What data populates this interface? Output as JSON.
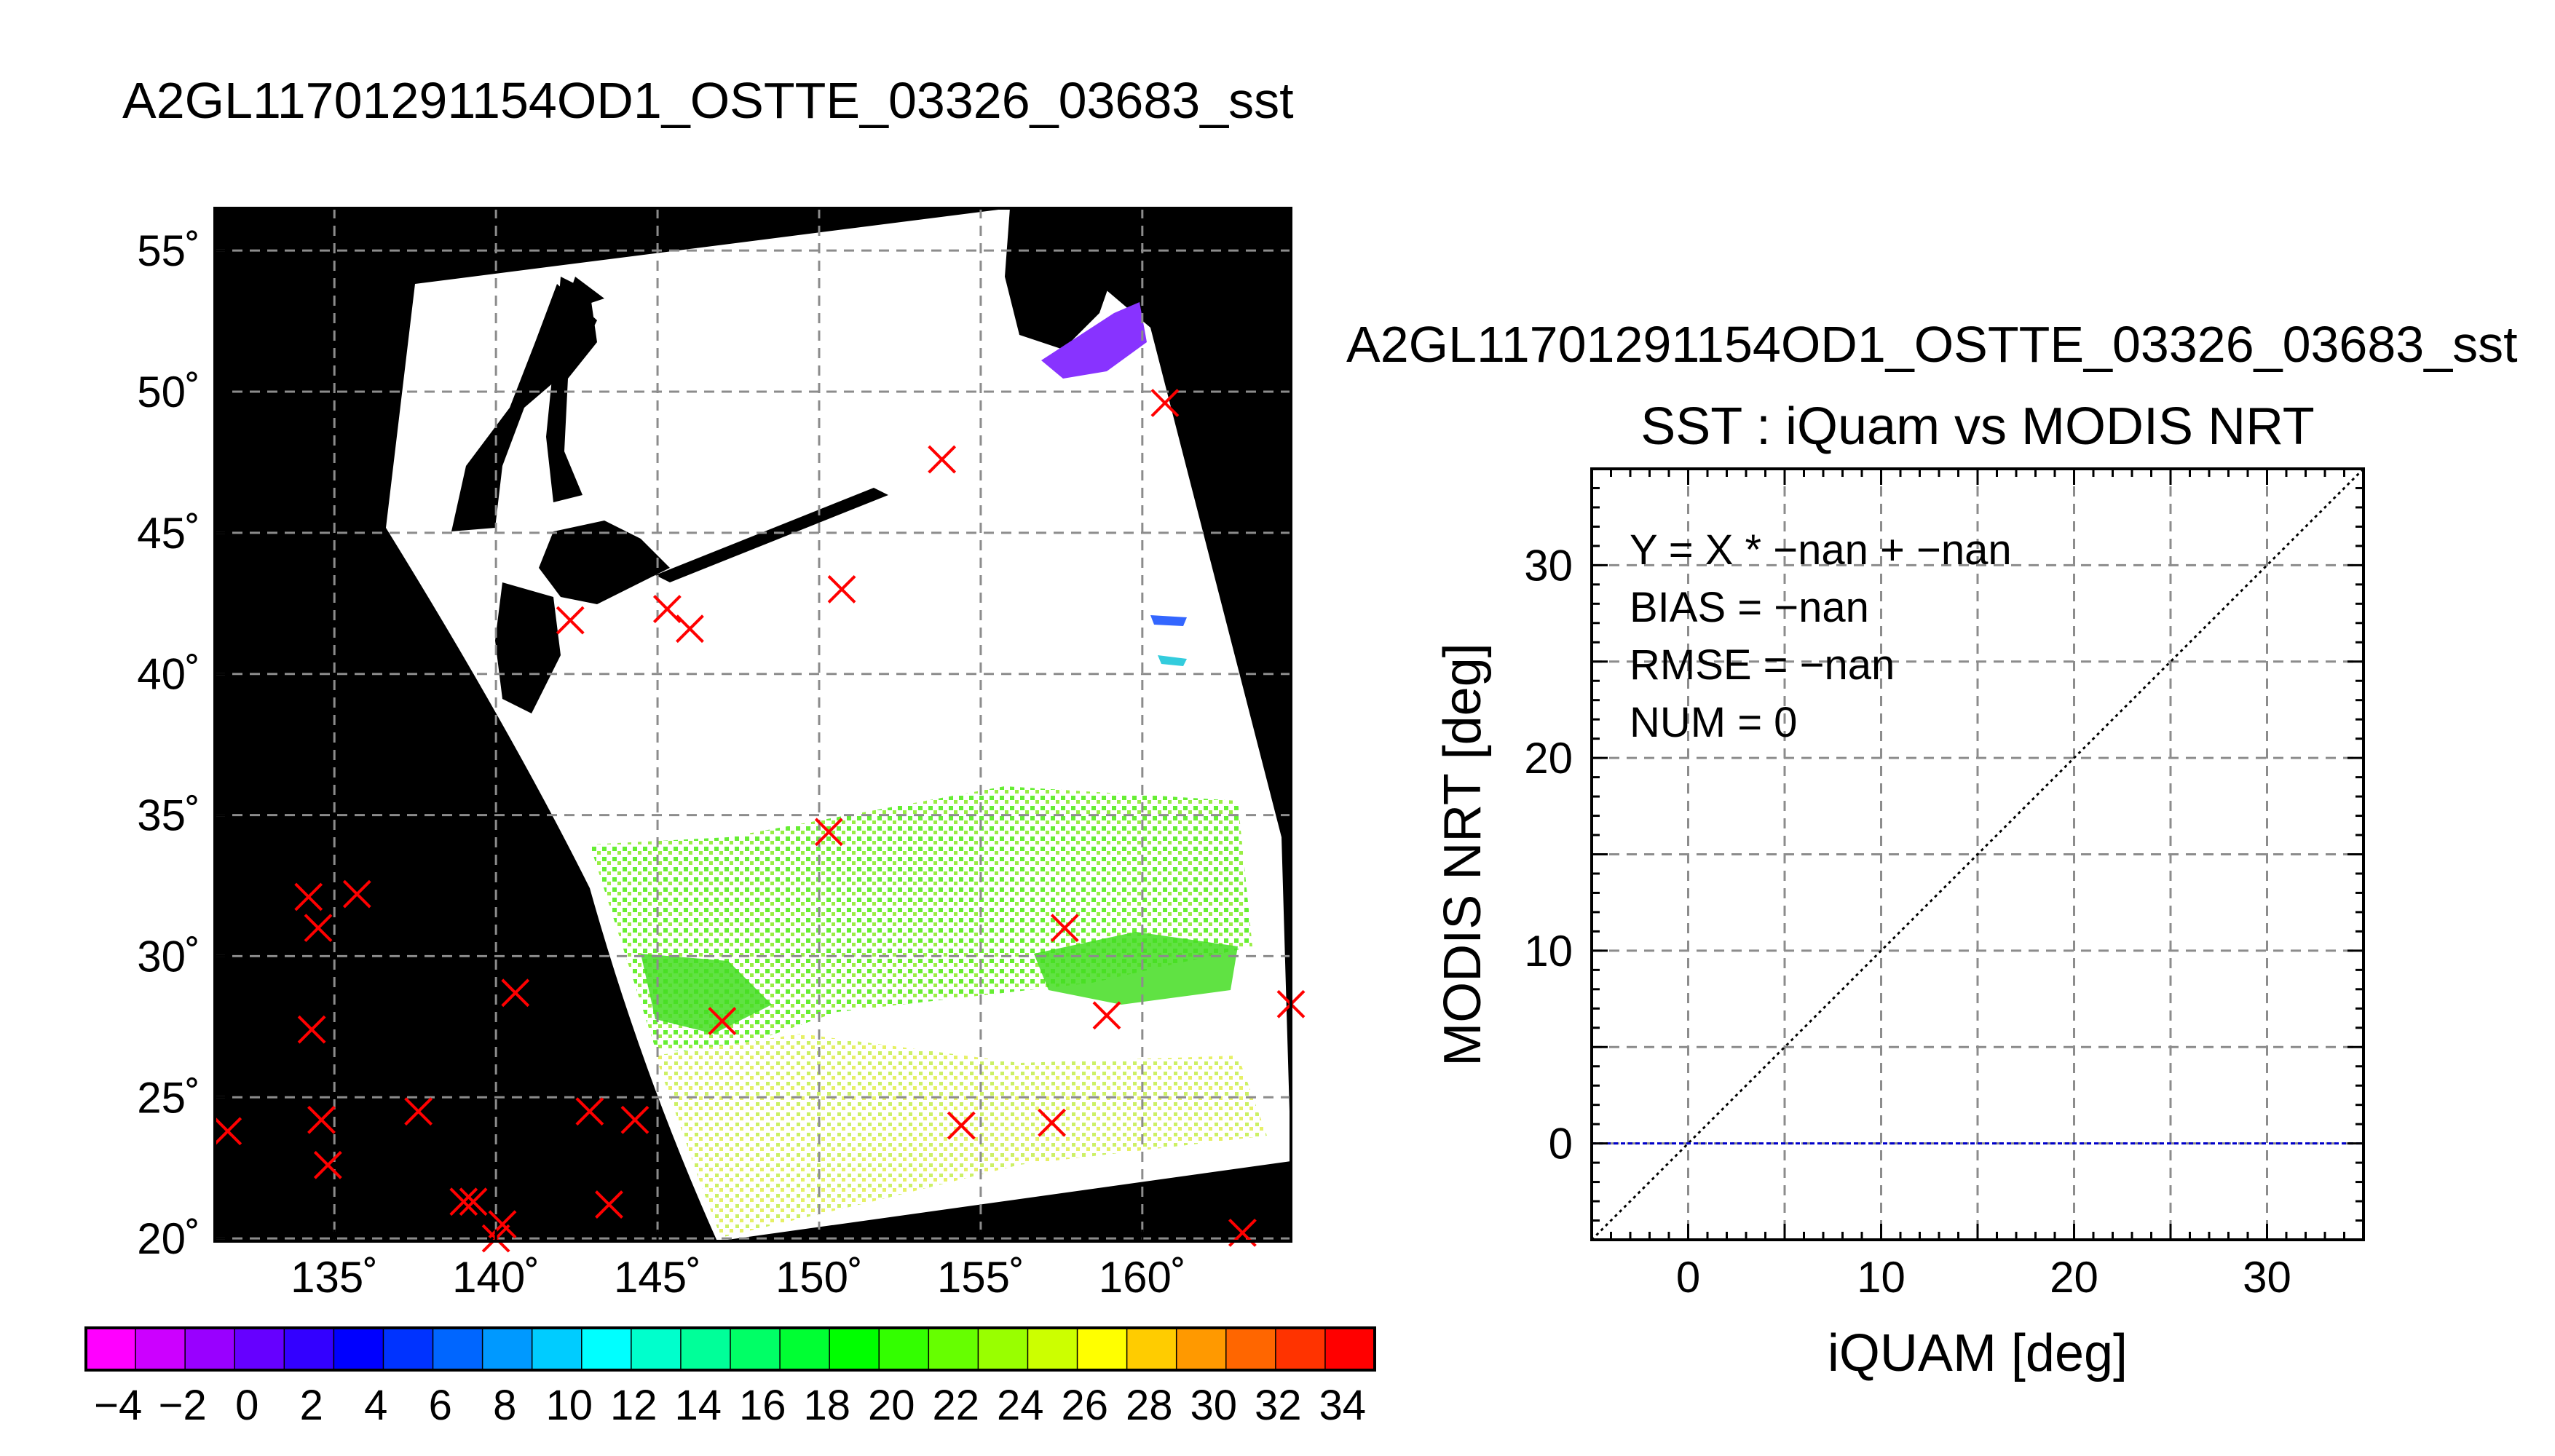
{
  "figure": {
    "main_title": "A2GL11701291154OD1_OSTTE_03326_03683_sst",
    "right_title": "A2GL11701291154OD1_OSTTE_03326_03683_sst",
    "colors": {
      "land": "#000000",
      "no_data": "#ffffff",
      "marker": "#ff0000",
      "grid": "#8c8c8c",
      "zero_line": "#0000cc"
    }
  },
  "chart_data": [
    {
      "type": "map",
      "title": "A2GL11701291154OD1_OSTTE_03326_03683_sst",
      "x_ticks": [
        "135˚",
        "140˚",
        "145˚",
        "150˚",
        "155˚",
        "160˚"
      ],
      "y_ticks": [
        "55˚",
        "50˚",
        "45˚",
        "40˚",
        "35˚",
        "30˚",
        "25˚",
        "20˚"
      ],
      "lon_range": [
        131.3,
        164.6
      ],
      "lat_range": [
        19.9,
        56.5
      ],
      "grid": true,
      "colorbar": {
        "tick_labels": [
          "−4",
          "−2",
          "0",
          "2",
          "4",
          "6",
          "8",
          "10",
          "12",
          "14",
          "16",
          "18",
          "20",
          "22",
          "24",
          "26",
          "28",
          "30",
          "32",
          "34"
        ],
        "range": [
          -5,
          35
        ],
        "colors": [
          "#ff00ff",
          "#cc00ff",
          "#9900ff",
          "#6600ff",
          "#3300ff",
          "#0000ff",
          "#0033ff",
          "#0066ff",
          "#0099ff",
          "#00ccff",
          "#00ffff",
          "#00ffcc",
          "#00ff99",
          "#00ff66",
          "#00ff33",
          "#00ff00",
          "#33ff00",
          "#66ff00",
          "#99ff00",
          "#ccff00",
          "#ffff00",
          "#ffcc00",
          "#ff9900",
          "#ff6600",
          "#ff3300",
          "#ff0000"
        ]
      },
      "markers": [
        {
          "lon": 131.7,
          "lat": 23.8
        },
        {
          "lon": 134.2,
          "lat": 32.1
        },
        {
          "lon": 135.7,
          "lat": 32.2
        },
        {
          "lon": 134.5,
          "lat": 31.0
        },
        {
          "lon": 134.3,
          "lat": 27.4
        },
        {
          "lon": 134.6,
          "lat": 24.2
        },
        {
          "lon": 134.8,
          "lat": 22.6
        },
        {
          "lon": 137.6,
          "lat": 24.5
        },
        {
          "lon": 139.0,
          "lat": 21.3
        },
        {
          "lon": 139.3,
          "lat": 21.3
        },
        {
          "lon": 140.2,
          "lat": 20.5
        },
        {
          "lon": 140.0,
          "lat": 20.0
        },
        {
          "lon": 140.6,
          "lat": 28.7
        },
        {
          "lon": 142.9,
          "lat": 24.5
        },
        {
          "lon": 143.5,
          "lat": 21.2
        },
        {
          "lon": 144.3,
          "lat": 24.2
        },
        {
          "lon": 142.3,
          "lat": 41.9
        },
        {
          "lon": 145.3,
          "lat": 42.3
        },
        {
          "lon": 146.0,
          "lat": 41.6
        },
        {
          "lon": 150.7,
          "lat": 43.0
        },
        {
          "lon": 150.3,
          "lat": 34.4
        },
        {
          "lon": 147.0,
          "lat": 27.7
        },
        {
          "lon": 153.8,
          "lat": 47.6
        },
        {
          "lon": 154.4,
          "lat": 24.0
        },
        {
          "lon": 157.2,
          "lat": 24.1
        },
        {
          "lon": 157.6,
          "lat": 31.0
        },
        {
          "lon": 158.9,
          "lat": 27.9
        },
        {
          "lon": 160.7,
          "lat": 49.6
        },
        {
          "lon": 163.1,
          "lat": 20.2
        },
        {
          "lon": 164.6,
          "lat": 28.3
        }
      ]
    },
    {
      "type": "scatter",
      "title": "SST : iQuam vs MODIS NRT",
      "xlabel": "iQUAM [deg]",
      "ylabel": "MODIS NRT [deg]",
      "xlim": [
        -5,
        35
      ],
      "ylim": [
        -5,
        35
      ],
      "x_ticks": [
        0,
        10,
        20,
        30
      ],
      "y_ticks": [
        0,
        10,
        20,
        30
      ],
      "grid": true,
      "points": [],
      "reference_lines": [
        {
          "kind": "identity",
          "from": [
            -5,
            -5
          ],
          "to": [
            35,
            35
          ],
          "color": "#000000",
          "style": "dotted"
        },
        {
          "kind": "y-zero",
          "y": 0,
          "color": "#0000cc",
          "style": "dashed"
        }
      ],
      "annotations": [
        "Y = X * −nan + −nan",
        "BIAS = −nan",
        "RMSE = −nan",
        "NUM = 0"
      ]
    }
  ]
}
